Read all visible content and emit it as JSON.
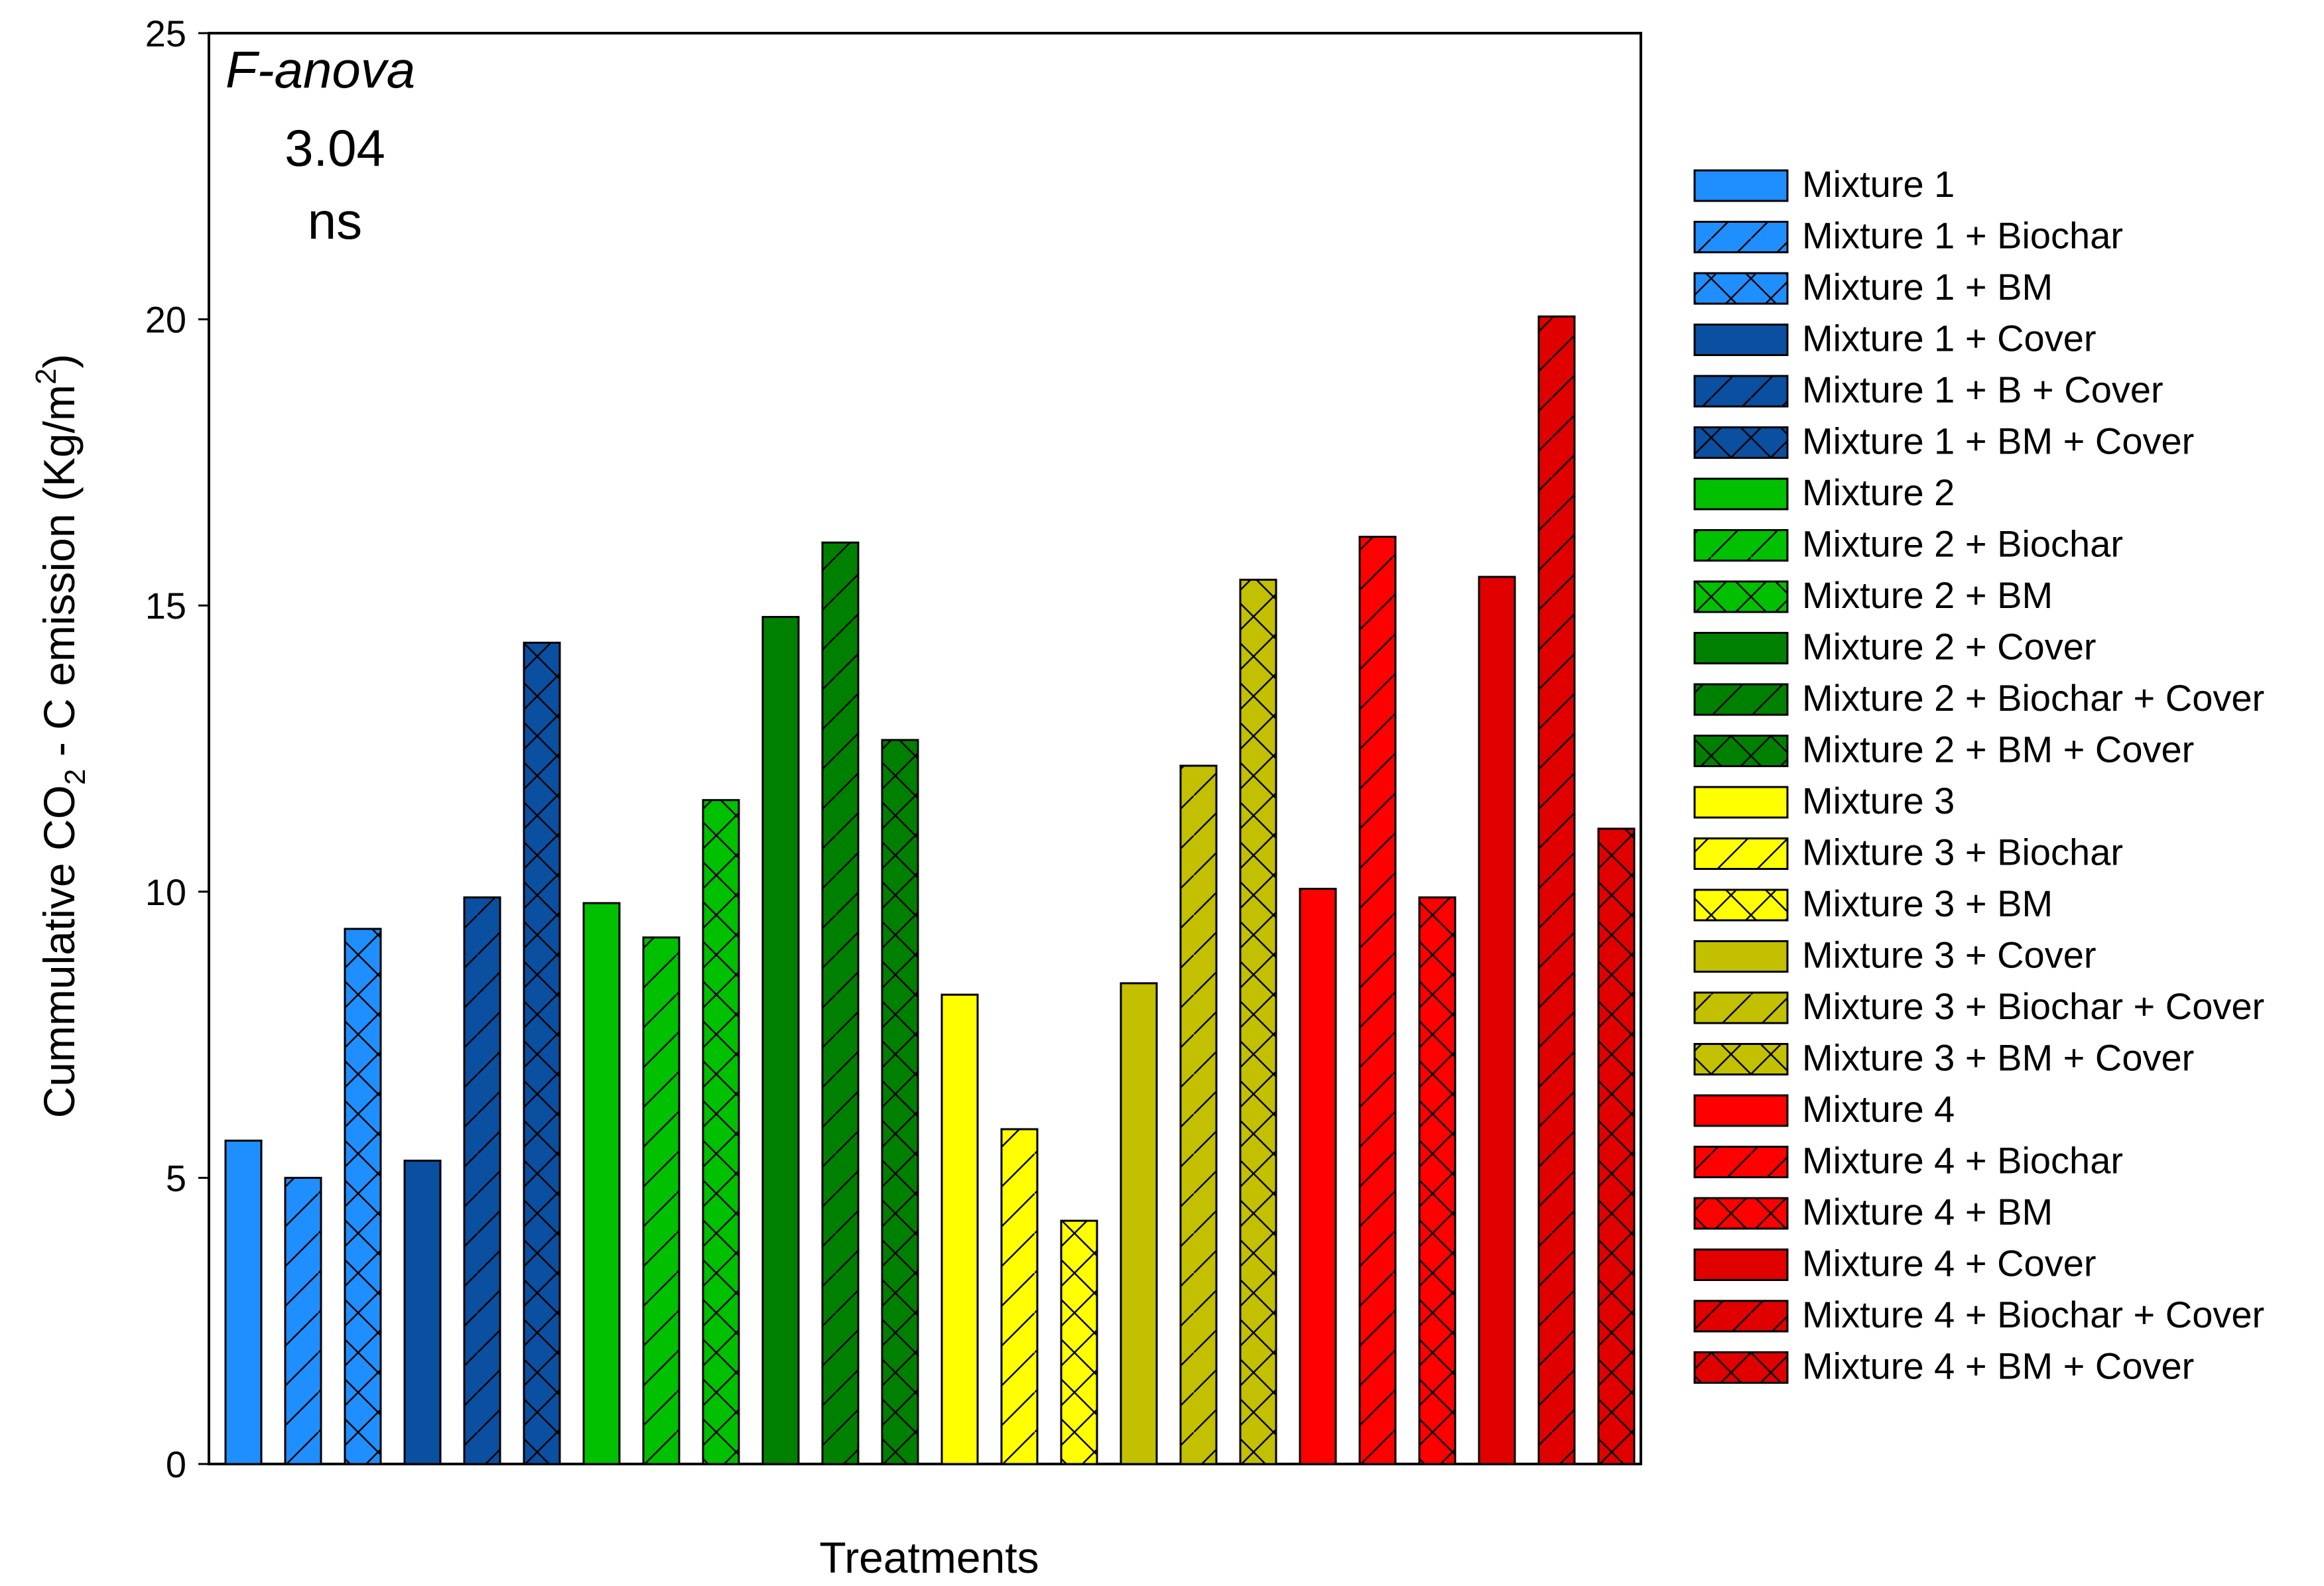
{
  "chart_data": {
    "type": "bar",
    "xlabel": "Treatments",
    "ylabel_parts": [
      "Cummulative CO",
      "2",
      " - C emission (Kg/m",
      "2",
      ")"
    ],
    "ylim": [
      0,
      25
    ],
    "yticks": [
      0,
      5,
      10,
      15,
      20,
      25
    ],
    "annotation": {
      "title": "F-anova",
      "value": "3.04",
      "significance": "ns"
    },
    "legend_position": "right",
    "series": [
      {
        "name": "Mixture 1",
        "value": 5.65,
        "color": "#1f8fff",
        "pattern": "none"
      },
      {
        "name": "Mixture 1 + Biochar",
        "value": 5.0,
        "color": "#1f8fff",
        "pattern": "diagonal"
      },
      {
        "name": "Mixture 1 + BM",
        "value": 9.35,
        "color": "#1f8fff",
        "pattern": "cross"
      },
      {
        "name": "Mixture 1 + Cover",
        "value": 5.3,
        "color": "#0a4fa0",
        "pattern": "none"
      },
      {
        "name": "Mixture 1 + B + Cover",
        "value": 9.9,
        "color": "#0a4fa0",
        "pattern": "diagonal"
      },
      {
        "name": "Mixture 1 + BM + Cover",
        "value": 14.35,
        "color": "#0a4fa0",
        "pattern": "cross"
      },
      {
        "name": "Mixture 2",
        "value": 9.8,
        "color": "#00c000",
        "pattern": "none"
      },
      {
        "name": "Mixture 2 + Biochar",
        "value": 9.2,
        "color": "#00c000",
        "pattern": "diagonal"
      },
      {
        "name": "Mixture 2 + BM",
        "value": 11.6,
        "color": "#00c000",
        "pattern": "cross"
      },
      {
        "name": "Mixture 2 + Cover",
        "value": 14.8,
        "color": "#008000",
        "pattern": "none"
      },
      {
        "name": "Mixture 2 + Biochar + Cover",
        "value": 16.1,
        "color": "#008000",
        "pattern": "diagonal"
      },
      {
        "name": "Mixture 2 + BM + Cover",
        "value": 12.65,
        "color": "#008000",
        "pattern": "cross"
      },
      {
        "name": "Mixture 3",
        "value": 8.2,
        "color": "#ffff00",
        "pattern": "none"
      },
      {
        "name": "Mixture 3 + Biochar",
        "value": 5.85,
        "color": "#ffff00",
        "pattern": "diagonal"
      },
      {
        "name": "Mixture 3 + BM",
        "value": 4.25,
        "color": "#ffff00",
        "pattern": "cross"
      },
      {
        "name": "Mixture 3 + Cover",
        "value": 8.4,
        "color": "#c2c000",
        "pattern": "none"
      },
      {
        "name": "Mixture 3 + Biochar + Cover",
        "value": 12.2,
        "color": "#c2c000",
        "pattern": "diagonal"
      },
      {
        "name": "Mixture 3 + BM + Cover",
        "value": 15.45,
        "color": "#c2c000",
        "pattern": "cross"
      },
      {
        "name": "Mixture 4",
        "value": 10.05,
        "color": "#ff0000",
        "pattern": "none"
      },
      {
        "name": "Mixture 4 + Biochar",
        "value": 16.2,
        "color": "#ff0000",
        "pattern": "diagonal"
      },
      {
        "name": "Mixture 4 + BM",
        "value": 9.9,
        "color": "#ff0000",
        "pattern": "cross"
      },
      {
        "name": "Mixture 4 + Cover",
        "value": 15.5,
        "color": "#e00000",
        "pattern": "none"
      },
      {
        "name": "Mixture 4 + Biochar + Cover",
        "value": 20.05,
        "color": "#e00000",
        "pattern": "diagonal"
      },
      {
        "name": "Mixture 4 + BM + Cover",
        "value": 11.1,
        "color": "#e00000",
        "pattern": "cross"
      }
    ]
  }
}
